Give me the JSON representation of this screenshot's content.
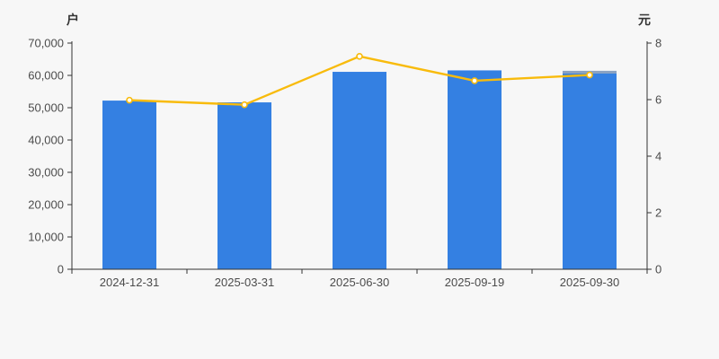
{
  "chart_data": {
    "type": "bar",
    "subtype": "dual-axis-bar-line",
    "title": "",
    "categories": [
      "2024-12-31",
      "2025-03-31",
      "2025-06-30",
      "2025-09-19",
      "2025-09-30"
    ],
    "series": [
      {
        "name": "bars",
        "type": "bar",
        "axis": "left",
        "values": [
          52200,
          51650,
          61100,
          61550,
          61400
        ]
      },
      {
        "name": "line",
        "type": "line",
        "axis": "right",
        "values": [
          5.98,
          5.82,
          7.53,
          6.67,
          6.87
        ]
      }
    ],
    "left_axis": {
      "name": "户",
      "min": 0,
      "max": 70000,
      "tick_step": 10000,
      "tick_labels": [
        "0",
        "10,000",
        "20,000",
        "30,000",
        "40,000",
        "50,000",
        "60,000",
        "70,000"
      ]
    },
    "right_axis": {
      "name": "元",
      "min": 0,
      "max": 8,
      "tick_step": 2,
      "tick_labels": [
        "0",
        "2",
        "4",
        "6",
        "8"
      ]
    },
    "grid": false,
    "legend": "none"
  },
  "style": {
    "background": "#f7f7f7",
    "bar_color": "#3480e2",
    "last_bar_cap_color": "#8ba3c2",
    "line_color": "#f8bb0c",
    "marker_fill": "#ffffff",
    "axis_color": "#333333",
    "tick_label_color": "#4c4c4c"
  }
}
